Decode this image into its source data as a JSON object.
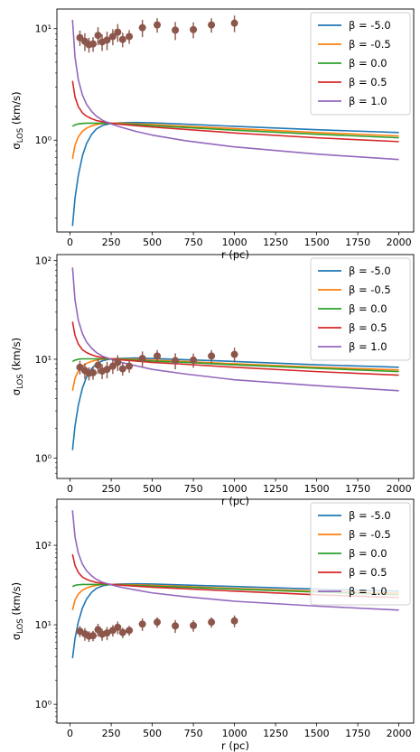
{
  "chart_data": [
    {
      "type": "line",
      "panel": "top",
      "xlabel": "r (pc)",
      "ylabel": "σ_LOS (km/s)",
      "yscale": "log",
      "xlim": [
        -80,
        2090
      ],
      "ylim": [
        0.15,
        15
      ],
      "xticks": [
        0,
        250,
        500,
        750,
        1000,
        1250,
        1500,
        1750,
        2000
      ],
      "xtick_labels": [
        "0",
        "250",
        "500",
        "750",
        "1000",
        "1250",
        "1500",
        "1750",
        "2000"
      ],
      "yticks": [
        1,
        10
      ],
      "ytick_labels": [
        "10⁰",
        "10¹"
      ],
      "legend_position": "upper right",
      "series": [
        {
          "name": "β = -5.0",
          "color": "#1f77b4",
          "x": [
            15,
            30,
            50,
            75,
            100,
            130,
            160,
            200,
            250,
            300,
            400,
            500,
            700,
            1000,
            1500,
            2000
          ],
          "y": [
            0.17,
            0.3,
            0.48,
            0.72,
            0.93,
            1.12,
            1.26,
            1.36,
            1.41,
            1.43,
            1.44,
            1.43,
            1.39,
            1.33,
            1.24,
            1.17
          ]
        },
        {
          "name": "β = -0.5",
          "color": "#ff7f0e",
          "x": [
            15,
            30,
            50,
            75,
            100,
            130,
            160,
            200,
            250,
            300,
            400,
            500,
            700,
            1000,
            1500,
            2000
          ],
          "y": [
            0.68,
            0.9,
            1.07,
            1.2,
            1.28,
            1.34,
            1.38,
            1.41,
            1.42,
            1.42,
            1.4,
            1.38,
            1.33,
            1.27,
            1.17,
            1.09
          ]
        },
        {
          "name": "β = 0.0",
          "color": "#2ca02c",
          "x": [
            15,
            30,
            50,
            75,
            100,
            130,
            160,
            200,
            250,
            300,
            400,
            500,
            700,
            1000,
            1500,
            2000
          ],
          "y": [
            1.33,
            1.37,
            1.4,
            1.41,
            1.42,
            1.42,
            1.42,
            1.42,
            1.41,
            1.4,
            1.38,
            1.35,
            1.3,
            1.23,
            1.13,
            1.05
          ]
        },
        {
          "name": "β = 0.5",
          "color": "#d62728",
          "x": [
            15,
            30,
            50,
            75,
            100,
            130,
            160,
            200,
            250,
            300,
            400,
            500,
            700,
            1000,
            1500,
            2000
          ],
          "y": [
            3.4,
            2.45,
            2.0,
            1.76,
            1.64,
            1.56,
            1.5,
            1.46,
            1.42,
            1.39,
            1.35,
            1.31,
            1.25,
            1.16,
            1.05,
            0.97
          ]
        },
        {
          "name": "β = 1.0",
          "color": "#9467bd",
          "x": [
            15,
            30,
            50,
            75,
            100,
            130,
            160,
            200,
            250,
            300,
            400,
            500,
            700,
            1000,
            1500,
            2000
          ],
          "y": [
            12.0,
            5.6,
            3.5,
            2.55,
            2.1,
            1.82,
            1.64,
            1.5,
            1.4,
            1.32,
            1.2,
            1.11,
            0.99,
            0.87,
            0.75,
            0.67
          ]
        }
      ],
      "observed": {
        "color": "#8c564b",
        "x": [
          60,
          90,
          115,
          140,
          170,
          195,
          225,
          260,
          290,
          320,
          360,
          440,
          530,
          640,
          750,
          860,
          1000
        ],
        "y": [
          8.3,
          7.7,
          7.2,
          7.3,
          8.7,
          7.6,
          7.9,
          8.5,
          9.3,
          8.0,
          8.5,
          10.2,
          10.8,
          9.7,
          9.8,
          10.8,
          11.2
        ],
        "yerr": [
          1.3,
          1.4,
          1.1,
          1.1,
          1.6,
          1.3,
          1.5,
          1.4,
          1.7,
          1.2,
          1.2,
          1.8,
          1.6,
          1.8,
          1.6,
          1.6,
          1.9
        ]
      }
    },
    {
      "type": "line",
      "panel": "middle",
      "xlabel": "r (pc)",
      "ylabel": "σ_LOS (km/s)",
      "yscale": "log",
      "xlim": [
        -80,
        2090
      ],
      "ylim": [
        0.62,
        115
      ],
      "xticks": [
        0,
        250,
        500,
        750,
        1000,
        1250,
        1500,
        1750,
        2000
      ],
      "xtick_labels": [
        "0",
        "250",
        "500",
        "750",
        "1000",
        "1250",
        "1500",
        "1750",
        "2000"
      ],
      "yticks": [
        1,
        10,
        100
      ],
      "ytick_labels": [
        "10⁰",
        "10¹",
        "10²"
      ],
      "legend_position": "upper right",
      "series": [
        {
          "name": "β = -5.0",
          "color": "#1f77b4",
          "x": [
            15,
            30,
            50,
            75,
            100,
            130,
            160,
            200,
            250,
            300,
            400,
            500,
            700,
            1000,
            1500,
            2000
          ],
          "y": [
            1.2,
            2.1,
            3.4,
            5.1,
            6.6,
            8.0,
            9.0,
            9.7,
            10.1,
            10.2,
            10.3,
            10.2,
            9.9,
            9.5,
            8.8,
            8.3
          ]
        },
        {
          "name": "β = -0.5",
          "color": "#ff7f0e",
          "x": [
            15,
            30,
            50,
            75,
            100,
            130,
            160,
            200,
            250,
            300,
            400,
            500,
            700,
            1000,
            1500,
            2000
          ],
          "y": [
            4.8,
            6.4,
            7.6,
            8.5,
            9.1,
            9.5,
            9.8,
            10.0,
            10.1,
            10.1,
            10.0,
            9.8,
            9.5,
            9.0,
            8.3,
            7.8
          ]
        },
        {
          "name": "β = 0.0",
          "color": "#2ca02c",
          "x": [
            15,
            30,
            50,
            75,
            100,
            130,
            160,
            200,
            250,
            300,
            400,
            500,
            700,
            1000,
            1500,
            2000
          ],
          "y": [
            9.5,
            9.8,
            10.0,
            10.1,
            10.1,
            10.1,
            10.1,
            10.1,
            10.0,
            10.0,
            9.8,
            9.6,
            9.3,
            8.8,
            8.1,
            7.5
          ]
        },
        {
          "name": "β = 0.5",
          "color": "#d62728",
          "x": [
            15,
            30,
            50,
            75,
            100,
            130,
            160,
            200,
            250,
            300,
            400,
            500,
            700,
            1000,
            1500,
            2000
          ],
          "y": [
            24,
            17.5,
            14.3,
            12.5,
            11.7,
            11.1,
            10.7,
            10.4,
            10.1,
            9.9,
            9.6,
            9.3,
            8.9,
            8.3,
            7.5,
            6.9
          ]
        },
        {
          "name": "β = 1.0",
          "color": "#9467bd",
          "x": [
            15,
            30,
            50,
            75,
            100,
            130,
            160,
            200,
            250,
            300,
            400,
            500,
            700,
            1000,
            1500,
            2000
          ],
          "y": [
            85,
            40,
            25,
            18.2,
            15.0,
            13.0,
            11.7,
            10.7,
            10.0,
            9.4,
            8.6,
            7.9,
            7.1,
            6.2,
            5.4,
            4.8
          ]
        }
      ],
      "observed": {
        "color": "#8c564b",
        "x": [
          60,
          90,
          115,
          140,
          170,
          195,
          225,
          260,
          290,
          320,
          360,
          440,
          530,
          640,
          750,
          860,
          1000
        ],
        "y": [
          8.3,
          7.7,
          7.2,
          7.3,
          8.7,
          7.6,
          7.9,
          8.5,
          9.3,
          8.0,
          8.5,
          10.2,
          10.8,
          9.7,
          9.8,
          10.8,
          11.2
        ],
        "yerr": [
          1.3,
          1.4,
          1.1,
          1.1,
          1.6,
          1.3,
          1.5,
          1.4,
          1.7,
          1.2,
          1.2,
          1.8,
          1.6,
          1.8,
          1.6,
          1.6,
          1.9
        ]
      }
    },
    {
      "type": "line",
      "panel": "bottom",
      "xlabel": "r (pc)",
      "ylabel": "σ_LOS (km/s)",
      "yscale": "log",
      "xlim": [
        -80,
        2090
      ],
      "ylim": [
        0.58,
        380
      ],
      "xticks": [
        0,
        250,
        500,
        750,
        1000,
        1250,
        1500,
        1750,
        2000
      ],
      "xtick_labels": [
        "0",
        "250",
        "500",
        "750",
        "1000",
        "1250",
        "1500",
        "1750",
        "2000"
      ],
      "yticks": [
        1,
        10,
        100
      ],
      "ytick_labels": [
        "10⁰",
        "10¹",
        "10²"
      ],
      "legend_position": "upper right",
      "series": [
        {
          "name": "β = -5.0",
          "color": "#1f77b4",
          "x": [
            15,
            30,
            50,
            75,
            100,
            130,
            160,
            200,
            250,
            300,
            400,
            500,
            700,
            1000,
            1500,
            2000
          ],
          "y": [
            3.8,
            6.7,
            10.8,
            16.2,
            21,
            25.5,
            28.7,
            31,
            32.2,
            32.6,
            32.8,
            32.6,
            31.6,
            30.3,
            28.1,
            26.5
          ]
        },
        {
          "name": "β = -0.5",
          "color": "#ff7f0e",
          "x": [
            15,
            30,
            50,
            75,
            100,
            130,
            160,
            200,
            250,
            300,
            400,
            500,
            700,
            1000,
            1500,
            2000
          ],
          "y": [
            15.3,
            20.4,
            24.3,
            27.2,
            29.1,
            30.4,
            31.3,
            32,
            32.2,
            32.2,
            31.9,
            31.3,
            30.3,
            28.7,
            26.5,
            24.9
          ]
        },
        {
          "name": "β = 0.0",
          "color": "#2ca02c",
          "x": [
            15,
            30,
            50,
            75,
            100,
            130,
            160,
            200,
            250,
            300,
            400,
            500,
            700,
            1000,
            1500,
            2000
          ],
          "y": [
            30.3,
            31.3,
            31.9,
            32.2,
            32.2,
            32.2,
            32.2,
            32.2,
            31.9,
            31.9,
            31.3,
            30.6,
            29.7,
            28.1,
            25.8,
            23.9
          ]
        },
        {
          "name": "β = 0.5",
          "color": "#d62728",
          "x": [
            15,
            30,
            50,
            75,
            100,
            130,
            160,
            200,
            250,
            300,
            400,
            500,
            700,
            1000,
            1500,
            2000
          ],
          "y": [
            77,
            56,
            45.6,
            39.9,
            37.3,
            35.4,
            34.1,
            33.2,
            32.2,
            31.6,
            30.6,
            29.7,
            28.4,
            26.5,
            23.9,
            22
          ]
        },
        {
          "name": "β = 1.0",
          "color": "#9467bd",
          "x": [
            15,
            30,
            50,
            75,
            100,
            130,
            160,
            200,
            250,
            300,
            400,
            500,
            700,
            1000,
            1500,
            2000
          ],
          "y": [
            275,
            128,
            80,
            58,
            48,
            41.5,
            37.3,
            34.1,
            31.9,
            30,
            27.4,
            25.2,
            22.6,
            19.8,
            17.2,
            15.3
          ]
        }
      ],
      "observed": {
        "color": "#8c564b",
        "x": [
          60,
          90,
          115,
          140,
          170,
          195,
          225,
          260,
          290,
          320,
          360,
          440,
          530,
          640,
          750,
          860,
          1000
        ],
        "y": [
          8.3,
          7.7,
          7.2,
          7.3,
          8.7,
          7.6,
          7.9,
          8.5,
          9.3,
          8.0,
          8.5,
          10.2,
          10.8,
          9.7,
          9.8,
          10.8,
          11.2
        ],
        "yerr": [
          1.3,
          1.4,
          1.1,
          1.1,
          1.6,
          1.3,
          1.5,
          1.4,
          1.7,
          1.2,
          1.2,
          1.8,
          1.6,
          1.8,
          1.6,
          1.6,
          1.9
        ]
      }
    }
  ]
}
